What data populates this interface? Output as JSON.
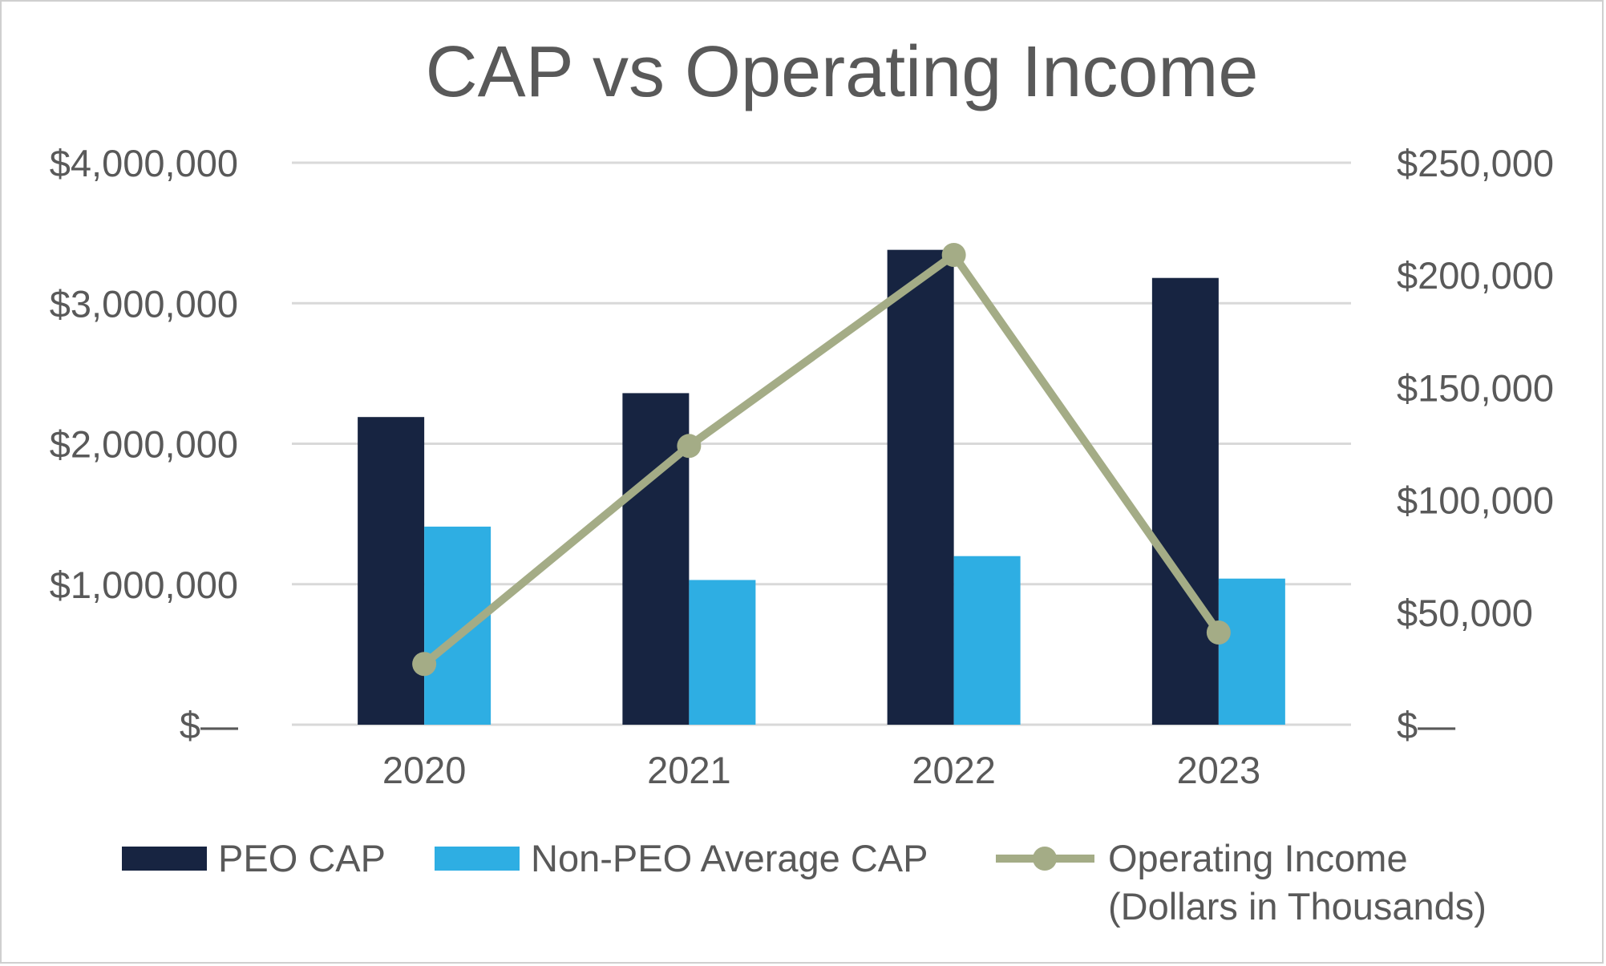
{
  "chart_data": {
    "type": "bar",
    "title": "CAP vs Operating Income",
    "categories": [
      "2020",
      "2021",
      "2022",
      "2023"
    ],
    "series": [
      {
        "name": "PEO CAP",
        "kind": "bar",
        "axis": "left",
        "color": "#172441",
        "values": [
          2190000,
          2360000,
          3380000,
          3180000
        ]
      },
      {
        "name": "Non-PEO Average CAP",
        "kind": "bar",
        "axis": "left",
        "color": "#2eaee3",
        "values": [
          1410000,
          1030000,
          1200000,
          1040000
        ]
      },
      {
        "name": "Operating Income",
        "name_line2": "(Dollars in Thousands)",
        "kind": "line",
        "axis": "right",
        "color": "#a4ac86",
        "values": [
          27000,
          124000,
          209000,
          41000
        ]
      }
    ],
    "left_axis": {
      "ylim": [
        0,
        4000000
      ],
      "ticks": [
        0,
        1000000,
        2000000,
        3000000,
        4000000
      ],
      "tick_labels": [
        "$—",
        "$1,000,000",
        "$2,000,000",
        "$3,000,000",
        "$4,000,000"
      ]
    },
    "right_axis": {
      "ylim": [
        0,
        250000
      ],
      "ticks": [
        0,
        50000,
        100000,
        150000,
        200000,
        250000
      ],
      "tick_labels": [
        "$—",
        "$50,000",
        "$100,000",
        "$150,000",
        "$200,000",
        "$250,000"
      ]
    },
    "grid": true,
    "legend_position": "bottom",
    "colors": {
      "text": "#595959",
      "grid": "#d9d9d9"
    }
  }
}
